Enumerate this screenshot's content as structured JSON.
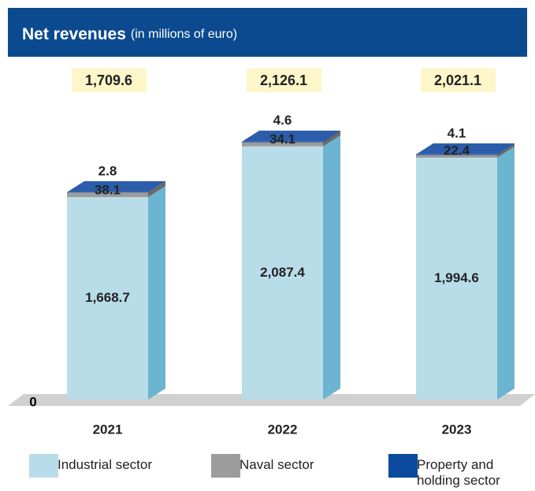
{
  "chart_data": {
    "type": "bar3d_stacked",
    "title": "Net revenues",
    "subtitle": "(in millions of euro)",
    "categories": [
      "2021",
      "2022",
      "2023"
    ],
    "series": [
      {
        "name": "Industrial sector",
        "color": "#b9dce9",
        "values": [
          1668.7,
          2087.4,
          1994.6
        ],
        "value_labels": [
          "1,668.7",
          "2,087.4",
          "1,994.6"
        ]
      },
      {
        "name": "Naval sector",
        "color": "#9c9c9c",
        "values": [
          38.1,
          34.1,
          22.4
        ]
      },
      {
        "name": "Property and holding sector",
        "color": "#0b4a9c",
        "values": [
          2.8,
          4.6,
          4.1
        ]
      }
    ],
    "totals": {
      "values": [
        1709.6,
        2126.1,
        2021.1
      ],
      "value_labels": [
        "1,709.6",
        "2,126.1",
        "2,021.1"
      ]
    },
    "ylim": [
      0,
      2300
    ],
    "yticks": [
      0
    ]
  }
}
